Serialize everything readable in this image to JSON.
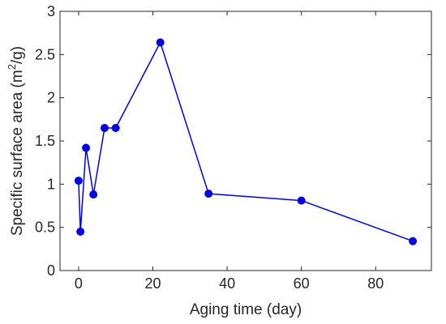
{
  "chart_data": {
    "type": "line",
    "title": "",
    "xlabel": "Aging time (day)",
    "ylabel_prefix": "Specific surface area (m",
    "ylabel_sup": "2",
    "ylabel_suffix": "/g)",
    "xlim": [
      -5,
      95
    ],
    "ylim": [
      0,
      3
    ],
    "xticks": [
      0,
      20,
      40,
      60,
      80
    ],
    "xtick_labels": [
      "0",
      "20",
      "40",
      "60",
      "80"
    ],
    "yticks": [
      0,
      0.5,
      1,
      1.5,
      2,
      2.5,
      3
    ],
    "ytick_labels": [
      "0",
      "0.5",
      "1",
      "1.5",
      "2",
      "2.5",
      "3"
    ],
    "grid": false,
    "series": [
      {
        "color": "#0000e6",
        "marker": "circle",
        "x": [
          0,
          0.5,
          2,
          4,
          7,
          10,
          22,
          35,
          60,
          90
        ],
        "y": [
          1.04,
          0.45,
          1.42,
          0.88,
          1.65,
          1.65,
          2.64,
          0.89,
          0.81,
          0.34
        ]
      }
    ]
  }
}
